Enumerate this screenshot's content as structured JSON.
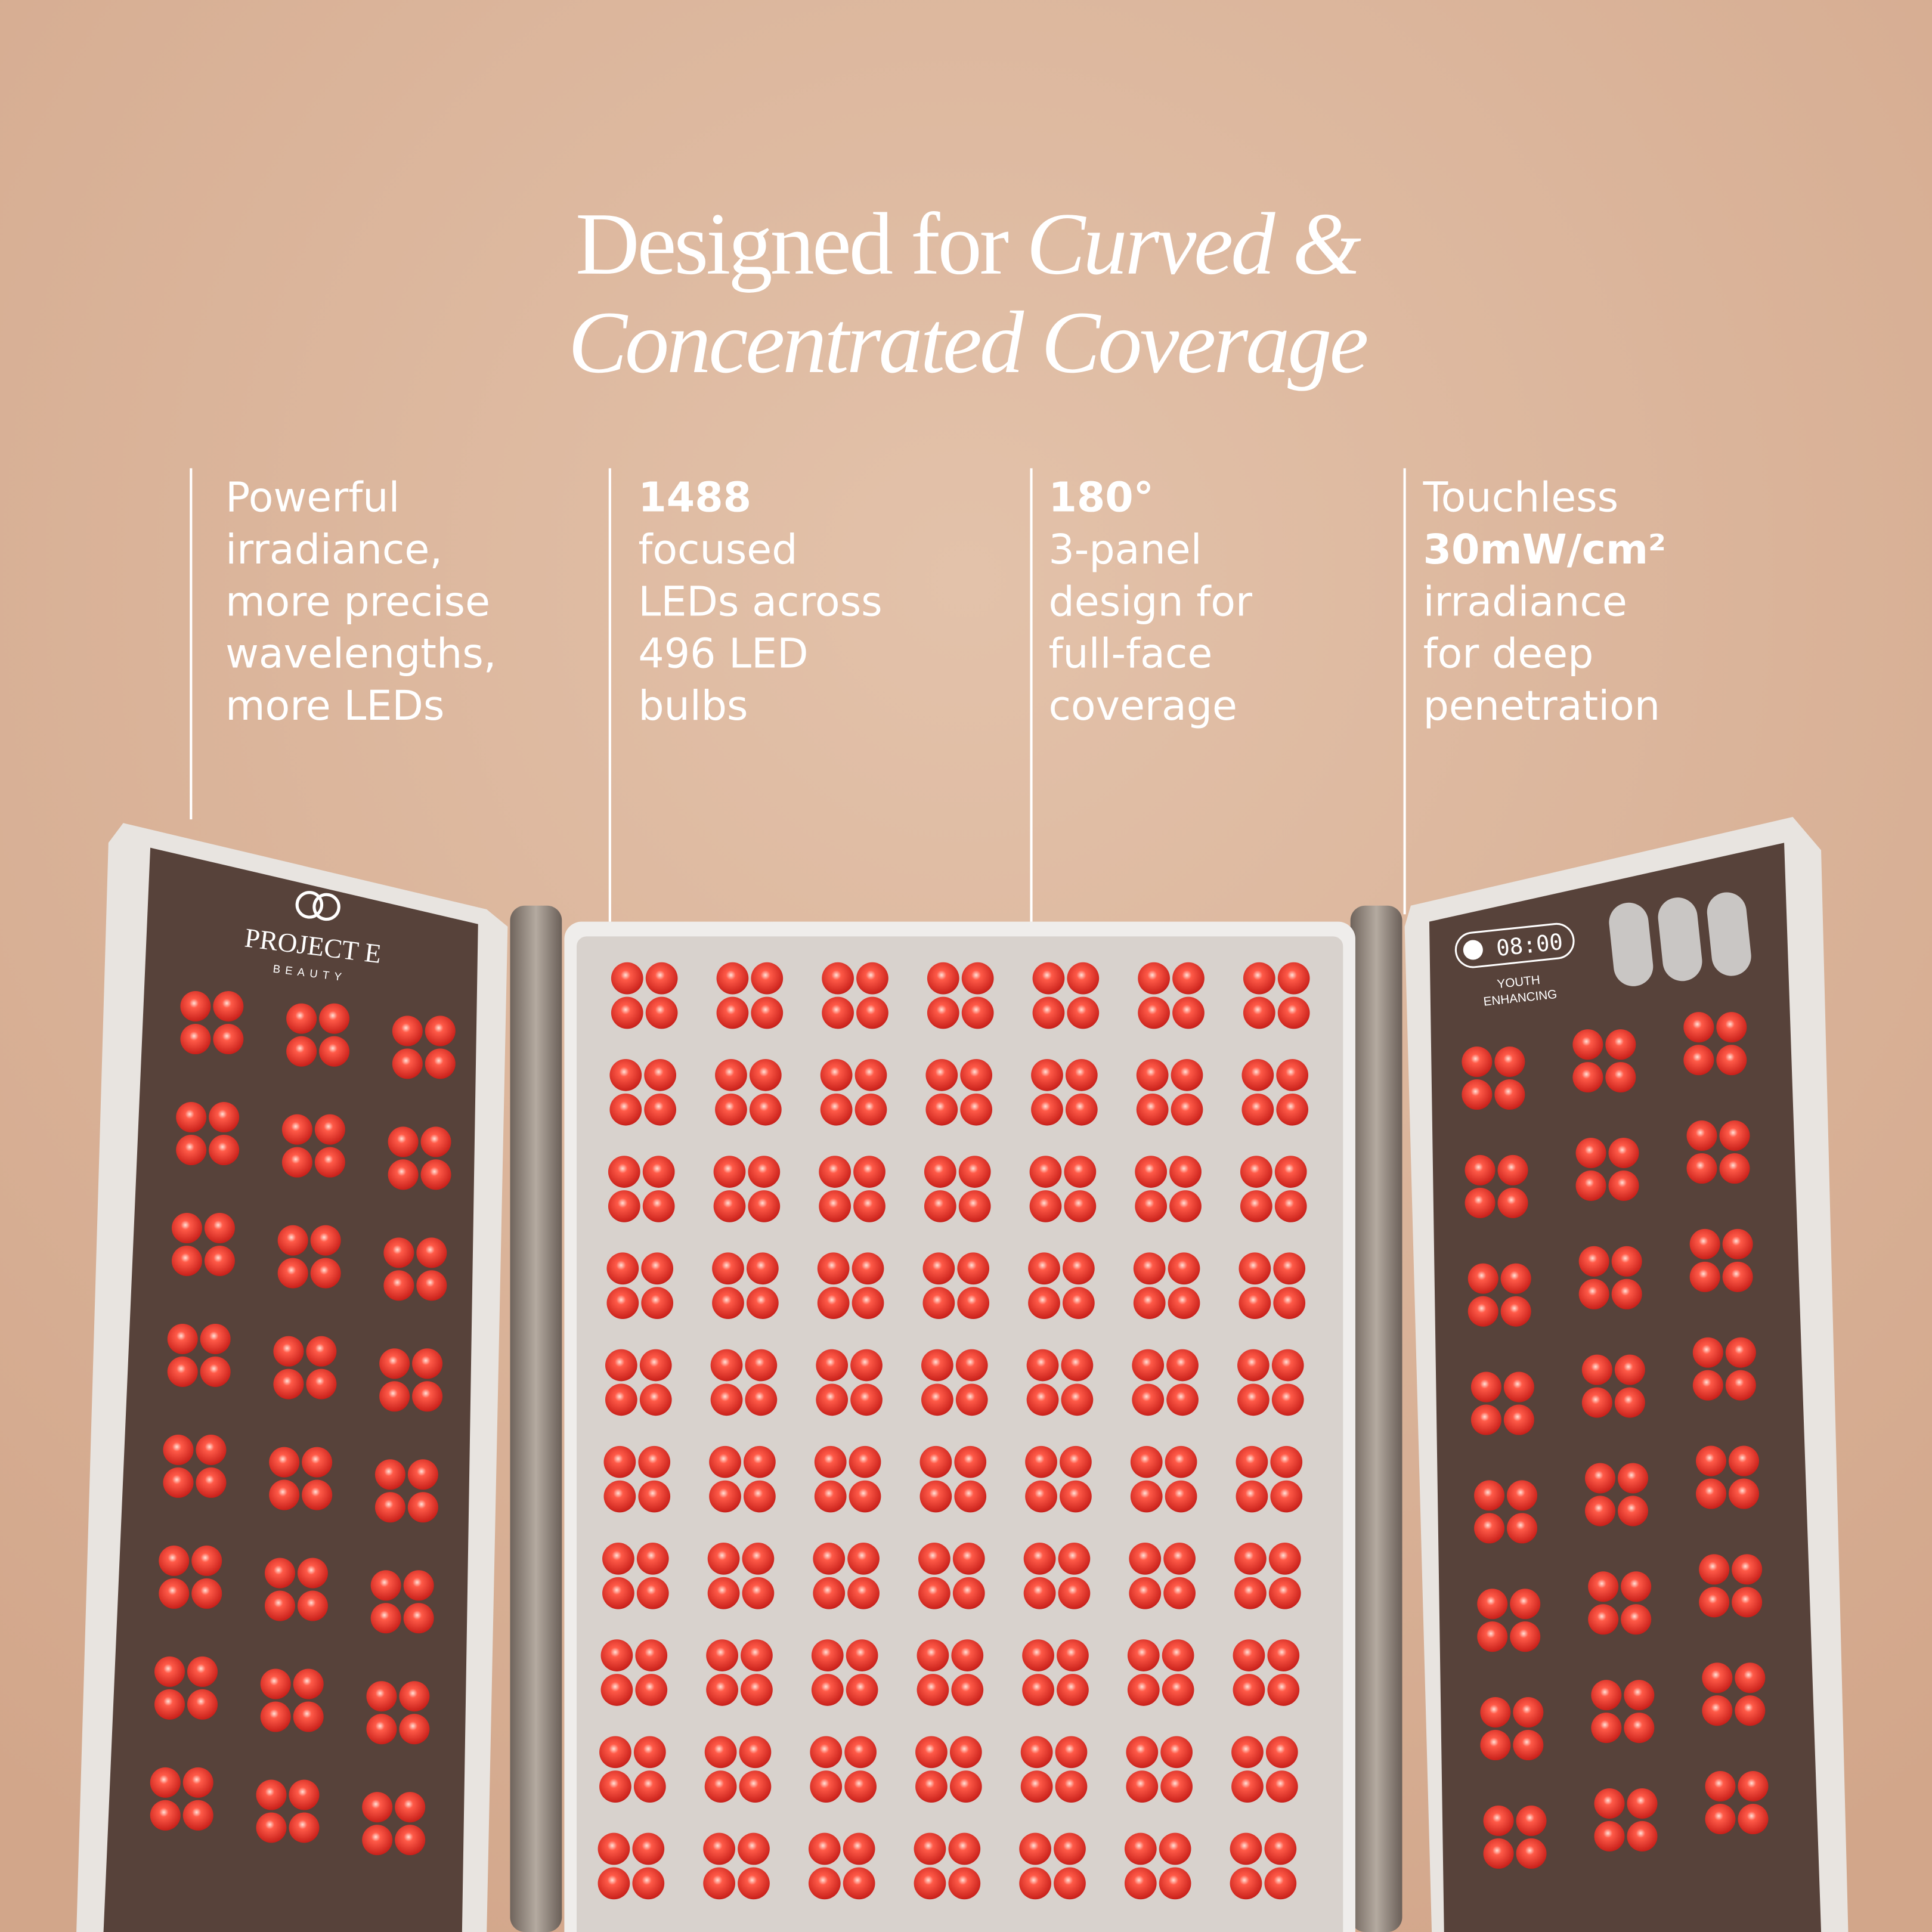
{
  "header": {
    "title_plain": "Designed for ",
    "title_italic_1": "Curved &",
    "title_italic_2": "Concentrated Coverage"
  },
  "features": [
    {
      "lines": [
        {
          "text": "Powerful",
          "bold": false
        },
        {
          "text": "irradiance,",
          "bold": false
        },
        {
          "text": "more precise",
          "bold": false
        },
        {
          "text": "wavelengths,",
          "bold": false
        },
        {
          "text": "more LEDs",
          "bold": false
        }
      ]
    },
    {
      "lines": [
        {
          "text": "1488",
          "bold": true
        },
        {
          "text": "focused",
          "bold": false
        },
        {
          "text": "LEDs across",
          "bold": false
        },
        {
          "text": "496 LED",
          "bold": false
        },
        {
          "text": "bulbs",
          "bold": false
        }
      ]
    },
    {
      "lines": [
        {
          "text": "180°",
          "bold": true
        },
        {
          "text": "3-panel",
          "bold": false
        },
        {
          "text": "design for",
          "bold": false
        },
        {
          "text": "full-face",
          "bold": false
        },
        {
          "text": "coverage",
          "bold": false
        }
      ]
    },
    {
      "lines": [
        {
          "text": "Touchless",
          "bold": false
        },
        {
          "text": "30mW/cm²",
          "bold": true
        },
        {
          "text": "irradiance",
          "bold": false
        },
        {
          "text": "for deep",
          "bold": false
        },
        {
          "text": "penetration",
          "bold": false
        }
      ]
    }
  ],
  "device": {
    "brand": "PROJECT E",
    "brand_sub": "BEAUTY",
    "timer": "08:00",
    "mode_1": "YOUTH",
    "mode_2": "ENHANCING"
  }
}
